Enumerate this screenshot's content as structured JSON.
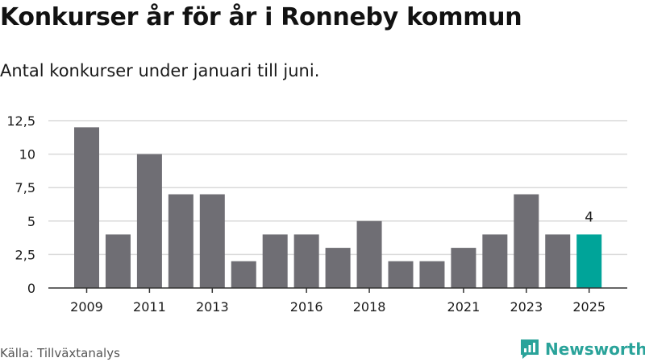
{
  "header": {
    "title": "Konkurser år för år i Ronneby kommun",
    "subtitle": "Antal konkurser under januari till juni."
  },
  "footer": {
    "source": "Källa: Tillväxtanalys",
    "brand": "Newsworthy"
  },
  "colors": {
    "bar": "#6f6e74",
    "highlight": "#00a499",
    "grid": "#d9d9d9",
    "axis": "#333333",
    "brand": "#2aa39a"
  },
  "chart_data": {
    "type": "bar",
    "categories": [
      "2009",
      "2010",
      "2011",
      "2012",
      "2013",
      "2014",
      "2015",
      "2016",
      "2017",
      "2018",
      "2019",
      "2020",
      "2021",
      "2022",
      "2023",
      "2024",
      "2025"
    ],
    "values": [
      12,
      4,
      10,
      7,
      7,
      2,
      4,
      4,
      3,
      5,
      2,
      2,
      3,
      4,
      7,
      4,
      4
    ],
    "xtick_labels": [
      "2009",
      "2011",
      "2013",
      "2016",
      "2018",
      "2021",
      "2023",
      "2025"
    ],
    "yticks": [
      0,
      2.5,
      5,
      7.5,
      10,
      12.5
    ],
    "ytick_labels": [
      "0",
      "2,5",
      "5",
      "7,5",
      "10",
      "12,5"
    ],
    "ylim": [
      0,
      12.5
    ],
    "highlight": {
      "category": "2025",
      "label": "4"
    },
    "grid": true
  }
}
